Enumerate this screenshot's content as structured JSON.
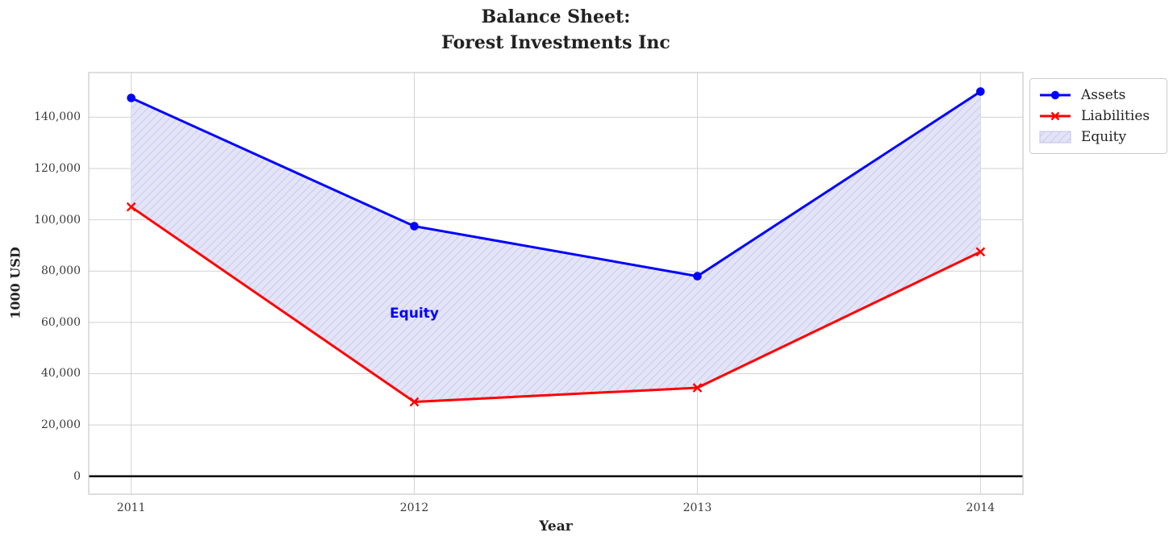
{
  "chart_data": {
    "type": "line",
    "title_lines": [
      "Balance Sheet:",
      "Forest Investments Inc"
    ],
    "xlabel": "Year",
    "ylabel": "1000 USD",
    "x": [
      2011,
      2012,
      2013,
      2014
    ],
    "series": [
      {
        "name": "Assets",
        "color": "#0000ff",
        "marker": "circle",
        "line_width": 3,
        "values": [
          147500,
          97500,
          78000,
          150000
        ]
      },
      {
        "name": "Liabilities",
        "color": "#ff0000",
        "marker": "x",
        "line_width": 3,
        "values": [
          105000,
          29000,
          34500,
          87500
        ]
      }
    ],
    "fill_between": {
      "name": "Equity",
      "between": [
        "Assets",
        "Liabilities"
      ],
      "fill_color": "#e4e4f7",
      "hatch_color": "#c2c2ee",
      "hatch_style": "//"
    },
    "annotation": {
      "text": "Equity",
      "color": "#0000ff",
      "x": 2012,
      "y": 63400
    },
    "yticks": {
      "values": [
        0,
        20000,
        40000,
        60000,
        80000,
        100000,
        120000,
        140000
      ],
      "labels": [
        "0",
        "20,000",
        "40,000",
        "60,000",
        "80,000",
        "100,000",
        "120,000",
        "140,000"
      ]
    },
    "xlim": [
      2010.85,
      2014.15
    ],
    "ylim": [
      -7000,
      157400
    ],
    "grid": true,
    "grid_color": "#d2d2d2",
    "box_color": "#c8c8c8",
    "zero_line": {
      "y": 0,
      "color": "#000000"
    },
    "legend": {
      "location": "upper right",
      "entries": [
        "Assets",
        "Liabilities",
        "Equity"
      ]
    }
  }
}
